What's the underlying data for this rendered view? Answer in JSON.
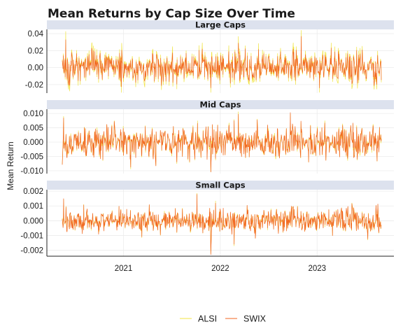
{
  "chart_data": {
    "type": "line",
    "title": "Mean Returns by Cap Size Over Time",
    "ylabel": "Mean Return",
    "xlabel": "",
    "x_range": [
      "2020-05-15",
      "2023-08-31"
    ],
    "x_ticks": [
      {
        "label": "2021",
        "date": "2021-01-01"
      },
      {
        "label": "2022",
        "date": "2022-01-01"
      },
      {
        "label": "2023",
        "date": "2023-01-01"
      }
    ],
    "legend_position": "bottom",
    "grid": true,
    "series": [
      {
        "name": "ALSI",
        "color": "#f0e442"
      },
      {
        "name": "SWIX",
        "color": "#f26522"
      }
    ],
    "panels": [
      {
        "strip": "Large Caps",
        "ylim": [
          -0.03,
          0.045
        ],
        "y_ticks": [
          {
            "label": "0.04",
            "value": 0.04
          },
          {
            "label": "0.02",
            "value": 0.02
          },
          {
            "label": "0.00",
            "value": 0.0
          },
          {
            "label": "-0.02",
            "value": -0.02
          }
        ],
        "amplitude": 0.0085,
        "alsi_factor": 1.25,
        "peaks": [
          {
            "date": "2020-05-28",
            "value": 0.033
          },
          {
            "date": "2020-06-12",
            "value": -0.021
          },
          {
            "date": "2022-03-10",
            "value": 0.029
          },
          {
            "date": "2022-11-02",
            "value": 0.037
          },
          {
            "date": "2021-11-26",
            "value": -0.024
          }
        ]
      },
      {
        "strip": "Mid Caps",
        "ylim": [
          -0.011,
          0.0115
        ],
        "y_ticks": [
          {
            "label": "0.010",
            "value": 0.01
          },
          {
            "label": "0.005",
            "value": 0.005
          },
          {
            "label": "0.000",
            "value": 0.0
          },
          {
            "label": "-0.005",
            "value": -0.005
          },
          {
            "label": "-0.010",
            "value": -0.01
          }
        ],
        "amplitude": 0.0028,
        "alsi_factor": 1.0,
        "peaks": [
          {
            "date": "2020-05-20",
            "value": 0.0085
          },
          {
            "date": "2021-11-26",
            "value": -0.0105
          },
          {
            "date": "2021-12-02",
            "value": 0.0062
          },
          {
            "date": "2022-03-10",
            "value": 0.0098
          },
          {
            "date": "2021-01-28",
            "value": -0.0088
          }
        ]
      },
      {
        "strip": "Small Caps",
        "ylim": [
          -0.0024,
          0.0021
        ],
        "y_ticks": [
          {
            "label": "0.002",
            "value": 0.002
          },
          {
            "label": "0.001",
            "value": 0.001
          },
          {
            "label": "0.000",
            "value": 0.0
          },
          {
            "label": "-0.001",
            "value": -0.001
          },
          {
            "label": "-0.002",
            "value": -0.002
          }
        ],
        "amplitude": 0.00038,
        "alsi_factor": 1.0,
        "peaks": [
          {
            "date": "2020-05-20",
            "value": 0.0015
          },
          {
            "date": "2021-11-26",
            "value": -0.0023
          },
          {
            "date": "2021-10-05",
            "value": 0.0018
          },
          {
            "date": "2021-12-14",
            "value": 0.0012
          },
          {
            "date": "2022-02-22",
            "value": -0.0016
          }
        ]
      }
    ]
  }
}
